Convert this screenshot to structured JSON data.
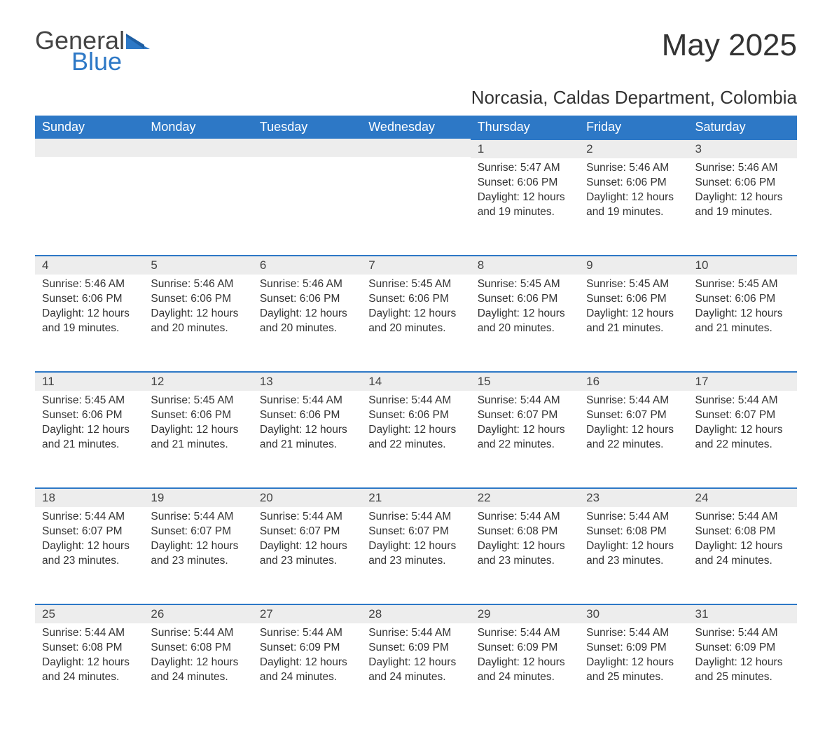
{
  "colors": {
    "header_bg": "#2d78c6",
    "header_text": "#ffffff",
    "daynum_bg": "#ededed",
    "daynum_border": "#2d78c6",
    "body_text": "#333333",
    "logo_gray": "#444444",
    "logo_blue": "#2d78c6",
    "page_bg": "#ffffff"
  },
  "typography": {
    "title_fontsize": 44,
    "subtitle_fontsize": 26,
    "header_fontsize": 18,
    "cell_fontsize": 15.5,
    "font_family": "Arial"
  },
  "logo": {
    "line1": "General",
    "line2": "Blue"
  },
  "title": "May 2025",
  "subtitle": "Norcasia, Caldas Department, Colombia",
  "weekdays": [
    "Sunday",
    "Monday",
    "Tuesday",
    "Wednesday",
    "Thursday",
    "Friday",
    "Saturday"
  ],
  "weeks": [
    [
      null,
      null,
      null,
      null,
      {
        "n": "1",
        "sunrise": "5:47 AM",
        "sunset": "6:06 PM",
        "daylight": "12 hours and 19 minutes."
      },
      {
        "n": "2",
        "sunrise": "5:46 AM",
        "sunset": "6:06 PM",
        "daylight": "12 hours and 19 minutes."
      },
      {
        "n": "3",
        "sunrise": "5:46 AM",
        "sunset": "6:06 PM",
        "daylight": "12 hours and 19 minutes."
      }
    ],
    [
      {
        "n": "4",
        "sunrise": "5:46 AM",
        "sunset": "6:06 PM",
        "daylight": "12 hours and 19 minutes."
      },
      {
        "n": "5",
        "sunrise": "5:46 AM",
        "sunset": "6:06 PM",
        "daylight": "12 hours and 20 minutes."
      },
      {
        "n": "6",
        "sunrise": "5:46 AM",
        "sunset": "6:06 PM",
        "daylight": "12 hours and 20 minutes."
      },
      {
        "n": "7",
        "sunrise": "5:45 AM",
        "sunset": "6:06 PM",
        "daylight": "12 hours and 20 minutes."
      },
      {
        "n": "8",
        "sunrise": "5:45 AM",
        "sunset": "6:06 PM",
        "daylight": "12 hours and 20 minutes."
      },
      {
        "n": "9",
        "sunrise": "5:45 AM",
        "sunset": "6:06 PM",
        "daylight": "12 hours and 21 minutes."
      },
      {
        "n": "10",
        "sunrise": "5:45 AM",
        "sunset": "6:06 PM",
        "daylight": "12 hours and 21 minutes."
      }
    ],
    [
      {
        "n": "11",
        "sunrise": "5:45 AM",
        "sunset": "6:06 PM",
        "daylight": "12 hours and 21 minutes."
      },
      {
        "n": "12",
        "sunrise": "5:45 AM",
        "sunset": "6:06 PM",
        "daylight": "12 hours and 21 minutes."
      },
      {
        "n": "13",
        "sunrise": "5:44 AM",
        "sunset": "6:06 PM",
        "daylight": "12 hours and 21 minutes."
      },
      {
        "n": "14",
        "sunrise": "5:44 AM",
        "sunset": "6:06 PM",
        "daylight": "12 hours and 22 minutes."
      },
      {
        "n": "15",
        "sunrise": "5:44 AM",
        "sunset": "6:07 PM",
        "daylight": "12 hours and 22 minutes."
      },
      {
        "n": "16",
        "sunrise": "5:44 AM",
        "sunset": "6:07 PM",
        "daylight": "12 hours and 22 minutes."
      },
      {
        "n": "17",
        "sunrise": "5:44 AM",
        "sunset": "6:07 PM",
        "daylight": "12 hours and 22 minutes."
      }
    ],
    [
      {
        "n": "18",
        "sunrise": "5:44 AM",
        "sunset": "6:07 PM",
        "daylight": "12 hours and 23 minutes."
      },
      {
        "n": "19",
        "sunrise": "5:44 AM",
        "sunset": "6:07 PM",
        "daylight": "12 hours and 23 minutes."
      },
      {
        "n": "20",
        "sunrise": "5:44 AM",
        "sunset": "6:07 PM",
        "daylight": "12 hours and 23 minutes."
      },
      {
        "n": "21",
        "sunrise": "5:44 AM",
        "sunset": "6:07 PM",
        "daylight": "12 hours and 23 minutes."
      },
      {
        "n": "22",
        "sunrise": "5:44 AM",
        "sunset": "6:08 PM",
        "daylight": "12 hours and 23 minutes."
      },
      {
        "n": "23",
        "sunrise": "5:44 AM",
        "sunset": "6:08 PM",
        "daylight": "12 hours and 23 minutes."
      },
      {
        "n": "24",
        "sunrise": "5:44 AM",
        "sunset": "6:08 PM",
        "daylight": "12 hours and 24 minutes."
      }
    ],
    [
      {
        "n": "25",
        "sunrise": "5:44 AM",
        "sunset": "6:08 PM",
        "daylight": "12 hours and 24 minutes."
      },
      {
        "n": "26",
        "sunrise": "5:44 AM",
        "sunset": "6:08 PM",
        "daylight": "12 hours and 24 minutes."
      },
      {
        "n": "27",
        "sunrise": "5:44 AM",
        "sunset": "6:09 PM",
        "daylight": "12 hours and 24 minutes."
      },
      {
        "n": "28",
        "sunrise": "5:44 AM",
        "sunset": "6:09 PM",
        "daylight": "12 hours and 24 minutes."
      },
      {
        "n": "29",
        "sunrise": "5:44 AM",
        "sunset": "6:09 PM",
        "daylight": "12 hours and 24 minutes."
      },
      {
        "n": "30",
        "sunrise": "5:44 AM",
        "sunset": "6:09 PM",
        "daylight": "12 hours and 25 minutes."
      },
      {
        "n": "31",
        "sunrise": "5:44 AM",
        "sunset": "6:09 PM",
        "daylight": "12 hours and 25 minutes."
      }
    ]
  ],
  "labels": {
    "sunrise_prefix": "Sunrise: ",
    "sunset_prefix": "Sunset: ",
    "daylight_prefix": "Daylight: "
  }
}
